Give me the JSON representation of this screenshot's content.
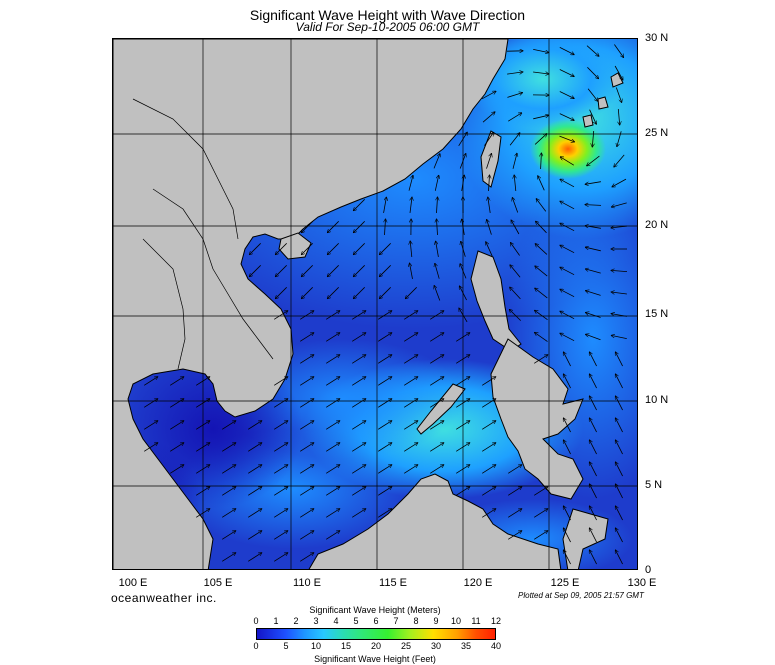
{
  "header": {
    "title": "Significant Wave Height with Wave Direction",
    "subtitle": "Valid For Sep-10-2005 06:00 GMT"
  },
  "map": {
    "lat_labels": [
      "30 N",
      "25 N",
      "20 N",
      "15 N",
      "10 N",
      "5 N",
      "0"
    ],
    "lon_labels": [
      "100 E",
      "105 E",
      "110 E",
      "115 E",
      "120 E",
      "125 E",
      "130 E"
    ],
    "lat_range": [
      0,
      30
    ],
    "lon_range": [
      100,
      130
    ],
    "land_color": "#c0c0c0",
    "sea_base_color": "#1e3ccc"
  },
  "footer": {
    "brand": "oceanweather inc.",
    "plotted": "Plotted at Sep 09, 2005 21:57 GMT"
  },
  "colorbar": {
    "top_title": "Significant Wave Height (Meters)",
    "bottom_title": "Significant Wave Height (Feet)",
    "meter_ticks": [
      "0",
      "1",
      "2",
      "3",
      "4",
      "5",
      "6",
      "7",
      "8",
      "9",
      "10",
      "11",
      "12"
    ],
    "feet_ticks": [
      "0",
      "5",
      "10",
      "15",
      "20",
      "25",
      "30",
      "35",
      "40"
    ]
  }
}
